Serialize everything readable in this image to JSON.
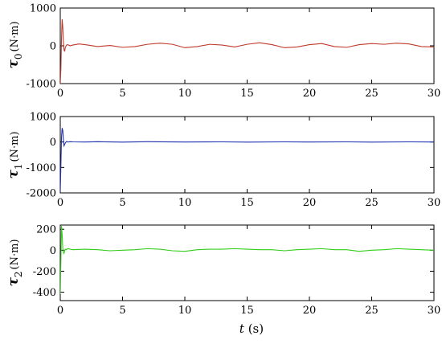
{
  "figure": {
    "xlabel_var": "t",
    "xlabel_unit": " (s)"
  },
  "chart_data": [
    {
      "type": "line",
      "ylabel_symbol": "τ",
      "ylabel_subscript": "0",
      "ylabel_unit": "(N·m)",
      "color": "#c0392b",
      "xlim": [
        0,
        30
      ],
      "ylim": [
        -1000,
        1000
      ],
      "yticks": [
        -1000,
        0,
        1000
      ],
      "yticklabels": [
        "-1000",
        "0",
        "1000"
      ],
      "xticks": [
        0,
        5,
        10,
        15,
        20,
        25,
        30
      ],
      "xticklabels": [
        "0",
        "5",
        "10",
        "15",
        "20",
        "25",
        "30"
      ],
      "series": [
        {
          "x": [
            0,
            0.05,
            0.1,
            0.15,
            0.2,
            0.25,
            0.3,
            0.35,
            0.4,
            0.5,
            0.6,
            0.8,
            1,
            1.5,
            2,
            3,
            4,
            5,
            6,
            7,
            8,
            9,
            10,
            11,
            12,
            13,
            14,
            15,
            16,
            17,
            18,
            19,
            20,
            21,
            22,
            23,
            24,
            25,
            26,
            27,
            28,
            29,
            30
          ],
          "y": [
            -1000,
            -600,
            200,
            700,
            500,
            100,
            -100,
            -150,
            -50,
            20,
            30,
            0,
            20,
            50,
            30,
            -20,
            10,
            -40,
            -20,
            40,
            70,
            40,
            -50,
            -20,
            40,
            20,
            -30,
            40,
            80,
            30,
            -50,
            -30,
            30,
            60,
            -20,
            -40,
            30,
            60,
            40,
            70,
            50,
            -20,
            -30
          ]
        }
      ]
    },
    {
      "type": "line",
      "ylabel_symbol": "τ",
      "ylabel_subscript": "1",
      "ylabel_unit": "(N·m)",
      "color": "#1f2fb0",
      "xlim": [
        0,
        30
      ],
      "ylim": [
        -2000,
        1000
      ],
      "yticks": [
        -2000,
        -1000,
        0,
        1000
      ],
      "yticklabels": [
        "-2000",
        "-1000",
        "0",
        "1000"
      ],
      "xticks": [
        0,
        5,
        10,
        15,
        20,
        25,
        30
      ],
      "xticklabels": [
        "0",
        "5",
        "10",
        "15",
        "20",
        "25",
        "30"
      ],
      "series": [
        {
          "x": [
            0,
            0.05,
            0.1,
            0.15,
            0.2,
            0.25,
            0.3,
            0.35,
            0.4,
            0.5,
            0.6,
            0.8,
            1,
            2,
            3,
            5,
            7,
            10,
            13,
            15,
            18,
            20,
            23,
            25,
            28,
            30
          ],
          "y": [
            -1950,
            -900,
            200,
            550,
            450,
            100,
            -150,
            -100,
            -40,
            20,
            0,
            10,
            5,
            0,
            10,
            -5,
            10,
            0,
            5,
            -5,
            5,
            0,
            5,
            -5,
            5,
            0
          ]
        }
      ]
    },
    {
      "type": "line",
      "ylabel_symbol": "τ",
      "ylabel_subscript": "2",
      "ylabel_unit": "(N·m)",
      "color": "#33cc1a",
      "xlim": [
        0,
        30
      ],
      "ylim": [
        -480,
        240
      ],
      "yticks": [
        -400,
        -200,
        0,
        200
      ],
      "yticklabels": [
        "-400",
        "-200",
        "0",
        "200"
      ],
      "xticks": [
        0,
        5,
        10,
        15,
        20,
        25,
        30
      ],
      "xticklabels": [
        "0",
        "5",
        "10",
        "15",
        "20",
        "25",
        "30"
      ],
      "series": [
        {
          "x": [
            0,
            0.05,
            0.1,
            0.15,
            0.2,
            0.25,
            0.3,
            0.35,
            0.4,
            0.5,
            0.6,
            0.8,
            1,
            2,
            3,
            4,
            5,
            6,
            7,
            8,
            9,
            10,
            11,
            12,
            13,
            14,
            15,
            16,
            17,
            18,
            19,
            20,
            21,
            22,
            23,
            24,
            25,
            26,
            27,
            28,
            29,
            30
          ],
          "y": [
            -420,
            -100,
            230,
            150,
            20,
            -20,
            -30,
            -10,
            10,
            5,
            15,
            10,
            5,
            10,
            5,
            -5,
            0,
            5,
            15,
            10,
            -5,
            -10,
            5,
            10,
            10,
            15,
            10,
            5,
            5,
            -5,
            5,
            10,
            15,
            5,
            5,
            -10,
            0,
            5,
            15,
            10,
            5,
            0
          ]
        }
      ]
    }
  ]
}
